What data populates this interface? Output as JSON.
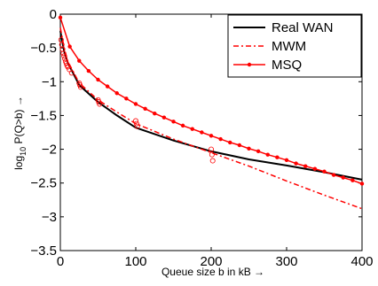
{
  "chart_data": {
    "type": "line",
    "title": "",
    "xlabel": "Queue size b in kB →",
    "ylabel_parts": [
      "log",
      "10",
      " P(Q>b) →"
    ],
    "xlim": [
      0,
      400
    ],
    "ylim": [
      -3.5,
      0
    ],
    "x_ticks": [
      0,
      100,
      200,
      300,
      400
    ],
    "y_ticks": [
      0,
      -0.5,
      -1,
      -1.5,
      -2,
      -2.5,
      -3,
      -3.5
    ],
    "x_tick_labels": [
      "0",
      "100",
      "200",
      "300",
      "400"
    ],
    "y_tick_labels": [
      "0",
      "−0.5",
      "−1",
      "−1.5",
      "−2",
      "−2.5",
      "−3",
      "−3.5"
    ],
    "grid": false,
    "legend_position": "top-right",
    "series": [
      {
        "name": "Real WAN",
        "color": "#000000",
        "style": "solid",
        "marker": "none",
        "x": [
          0,
          5,
          10,
          25,
          50,
          75,
          100,
          150,
          200,
          250,
          300,
          350,
          400
        ],
        "y": [
          -0.25,
          -0.55,
          -0.72,
          -1.05,
          -1.3,
          -1.5,
          -1.68,
          -1.87,
          -2.03,
          -2.15,
          -2.24,
          -2.34,
          -2.45
        ]
      },
      {
        "name": "MWM",
        "color": "#ff0000",
        "style": "dashdot",
        "marker": "none",
        "x": [
          0,
          5,
          10,
          25,
          50,
          75,
          100,
          150,
          200,
          250,
          300,
          350,
          400
        ],
        "y": [
          -0.2,
          -0.5,
          -0.7,
          -1.02,
          -1.27,
          -1.45,
          -1.62,
          -1.85,
          -2.05,
          -2.25,
          -2.47,
          -2.68,
          -2.88
        ]
      },
      {
        "name": "MSQ",
        "color": "#ff0000",
        "style": "solid",
        "marker": "dot",
        "x": [
          0,
          12.5,
          25,
          37.5,
          50,
          62.5,
          75,
          87.5,
          100,
          112.5,
          125,
          137.5,
          150,
          162.5,
          175,
          187.5,
          200,
          212.5,
          225,
          237.5,
          250,
          262.5,
          275,
          287.5,
          300,
          312.5,
          325,
          337.5,
          350,
          362.5,
          375,
          387.5,
          400
        ],
        "y": [
          -0.05,
          -0.48,
          -0.69,
          -0.84,
          -0.97,
          -1.07,
          -1.17,
          -1.25,
          -1.33,
          -1.4,
          -1.47,
          -1.53,
          -1.59,
          -1.65,
          -1.7,
          -1.75,
          -1.8,
          -1.85,
          -1.9,
          -1.94,
          -1.99,
          -2.03,
          -2.08,
          -2.12,
          -2.16,
          -2.21,
          -2.25,
          -2.29,
          -2.33,
          -2.38,
          -2.42,
          -2.46,
          -2.51
        ]
      },
      {
        "name": "",
        "color": "#ff0000",
        "style": "none",
        "marker": "circle",
        "x": [
          1,
          2,
          3,
          4,
          5,
          6,
          7,
          8,
          9,
          10,
          12,
          15,
          25,
          26,
          27,
          50,
          51,
          52,
          100,
          101,
          102,
          200,
          201,
          202
        ],
        "y": [
          -0.38,
          -0.45,
          -0.52,
          -0.58,
          -0.62,
          -0.66,
          -0.7,
          -0.73,
          -0.76,
          -0.78,
          -0.82,
          -0.87,
          -1.02,
          -1.05,
          -1.08,
          -1.27,
          -1.3,
          -1.33,
          -1.58,
          -1.62,
          -1.66,
          -2.0,
          -2.08,
          -2.17
        ]
      }
    ]
  }
}
